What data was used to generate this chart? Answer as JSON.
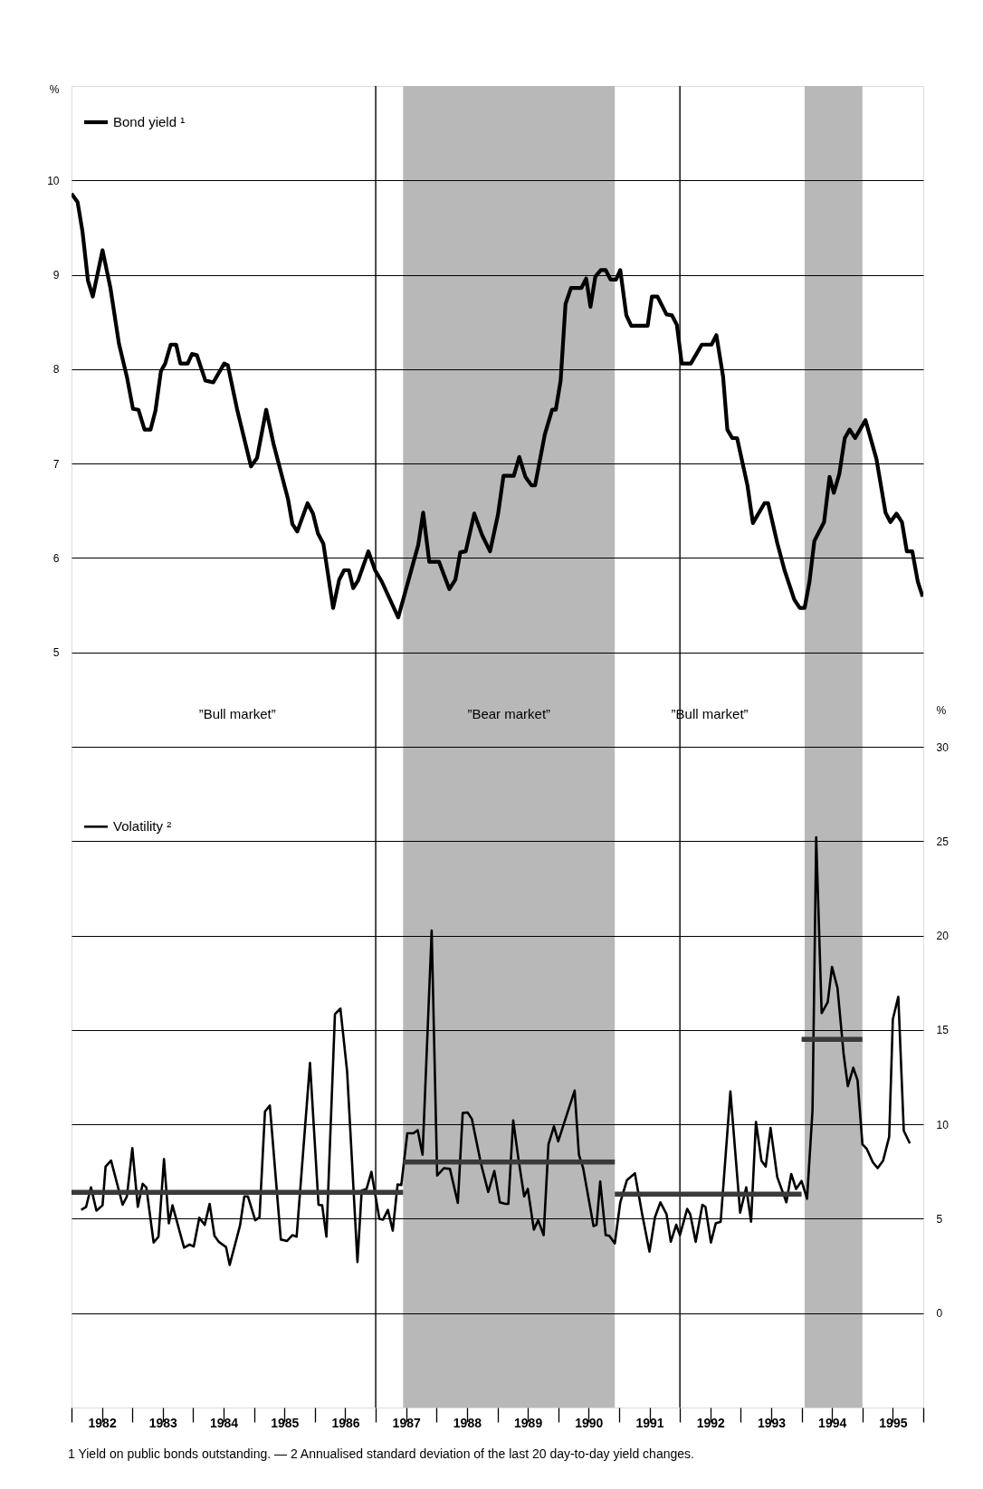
{
  "chart_data": {
    "type": "line",
    "xlim": [
      1982,
      1996
    ],
    "xticks": [
      {
        "value": 1982,
        "label": null
      },
      {
        "value": 1982.5,
        "label": "1982"
      },
      {
        "value": 1983,
        "label": null
      },
      {
        "value": 1983.5,
        "label": "1983"
      },
      {
        "value": 1984,
        "label": null
      },
      {
        "value": 1984.5,
        "label": "1984"
      },
      {
        "value": 1985,
        "label": null
      },
      {
        "value": 1985.5,
        "label": "1985"
      },
      {
        "value": 1986,
        "label": null
      },
      {
        "value": 1986.5,
        "label": "1986"
      },
      {
        "value": 1987,
        "label": null
      },
      {
        "value": 1987.5,
        "label": "1987"
      },
      {
        "value": 1988,
        "label": null
      },
      {
        "value": 1988.5,
        "label": "1988"
      },
      {
        "value": 1989,
        "label": null
      },
      {
        "value": 1989.5,
        "label": "1989"
      },
      {
        "value": 1990,
        "label": null
      },
      {
        "value": 1990.5,
        "label": "1990"
      },
      {
        "value": 1991,
        "label": null
      },
      {
        "value": 1991.5,
        "label": "1991"
      },
      {
        "value": 1992,
        "label": null
      },
      {
        "value": 1992.5,
        "label": "1992"
      },
      {
        "value": 1993,
        "label": null
      },
      {
        "value": 1993.5,
        "label": "1993"
      },
      {
        "value": 1994,
        "label": null
      },
      {
        "value": 1994.5,
        "label": "1994"
      },
      {
        "value": 1995,
        "label": null
      },
      {
        "value": 1995.5,
        "label": "1995"
      },
      {
        "value": 1996,
        "label": null
      }
    ],
    "ylabel": "%",
    "ylim": [
      -3,
      11
    ],
    "yticks": [
      {
        "value": -2,
        "label": null
      },
      {
        "value": -1,
        "label": null
      },
      {
        "value": 0,
        "label": null
      },
      {
        "value": 1,
        "label": null
      },
      {
        "value": 2,
        "label": null
      },
      {
        "value": 3,
        "label": null
      },
      {
        "value": 4,
        "label": null
      },
      5,
      6,
      7,
      8,
      9,
      10
    ],
    "y2label": "%",
    "y2lim": [
      -5,
      65
    ],
    "y2ticks": [
      0,
      5,
      10,
      15,
      20,
      25,
      30
    ],
    "grid": "y",
    "legend": "top left",
    "series": [
      {
        "name": "Bond yield ¹",
        "color": "#000000",
        "x": [
          1982.0,
          1982.1,
          1982.18,
          1982.27,
          1982.35,
          1982.51,
          1982.64,
          1982.78,
          1982.91,
          1983.01,
          1983.1,
          1983.2,
          1983.3,
          1983.38,
          1983.47,
          1983.54,
          1983.63,
          1983.72,
          1983.79,
          1983.91,
          1983.98,
          1984.06,
          1984.2,
          1984.33,
          1984.51,
          1984.57,
          1984.72,
          1984.95,
          1985.05,
          1985.2,
          1985.32,
          1985.56,
          1985.63,
          1985.71,
          1985.88,
          1985.97,
          1986.05,
          1986.14,
          1986.3,
          1986.4,
          1986.48,
          1986.56,
          1986.63,
          1986.71,
          1986.88,
          1986.99,
          1987.1,
          1987.37,
          1987.7,
          1987.78,
          1987.88,
          1988.04,
          1988.21,
          1988.31,
          1988.39,
          1988.48,
          1988.62,
          1988.75,
          1988.88,
          1989.01,
          1989.1,
          1989.27,
          1989.36,
          1989.46,
          1989.56,
          1989.62,
          1989.78,
          1989.9,
          1989.96,
          1990.04,
          1990.12,
          1990.21,
          1990.38,
          1990.46,
          1990.53,
          1990.61,
          1990.7,
          1990.78,
          1990.86,
          1990.95,
          1991.02,
          1991.12,
          1991.2,
          1991.47,
          1991.54,
          1991.63,
          1991.78,
          1991.87,
          1991.95,
          1992.03,
          1992.18,
          1992.36,
          1992.52,
          1992.6,
          1992.71,
          1992.78,
          1992.86,
          1992.94,
          1993.11,
          1993.2,
          1993.39,
          1993.45,
          1993.6,
          1993.72,
          1993.88,
          1993.97,
          1994.05,
          1994.13,
          1994.21,
          1994.37,
          1994.46,
          1994.53,
          1994.62,
          1994.71,
          1994.79,
          1994.88,
          1995.05,
          1995.23,
          1995.38,
          1995.46,
          1995.56,
          1995.65,
          1995.73,
          1995.82,
          1995.91,
          1995.99
        ],
        "values": [
          9.86,
          9.77,
          9.46,
          8.94,
          8.77,
          9.26,
          8.86,
          8.27,
          7.92,
          7.58,
          7.57,
          7.36,
          7.36,
          7.56,
          7.98,
          8.06,
          8.26,
          8.26,
          8.06,
          8.06,
          8.16,
          8.15,
          7.88,
          7.86,
          8.06,
          8.04,
          7.58,
          6.97,
          7.06,
          7.57,
          7.21,
          6.62,
          6.36,
          6.28,
          6.58,
          6.47,
          6.26,
          6.15,
          5.47,
          5.77,
          5.87,
          5.87,
          5.68,
          5.76,
          6.07,
          5.87,
          5.75,
          5.37,
          6.14,
          6.48,
          5.96,
          5.96,
          5.67,
          5.77,
          6.06,
          6.07,
          6.47,
          6.24,
          6.07,
          6.46,
          6.87,
          6.87,
          7.07,
          6.86,
          6.77,
          6.77,
          7.31,
          7.57,
          7.57,
          7.88,
          8.69,
          8.86,
          8.86,
          8.96,
          8.66,
          8.98,
          9.05,
          9.05,
          8.95,
          8.95,
          9.05,
          8.57,
          8.46,
          8.46,
          8.77,
          8.77,
          8.58,
          8.57,
          8.47,
          8.06,
          8.06,
          8.26,
          8.26,
          8.36,
          7.92,
          7.36,
          7.27,
          7.27,
          6.77,
          6.37,
          6.58,
          6.58,
          6.16,
          5.87,
          5.56,
          5.47,
          5.47,
          5.75,
          6.18,
          6.38,
          6.86,
          6.69,
          6.89,
          7.27,
          7.36,
          7.27,
          7.46,
          7.05,
          6.48,
          6.38,
          6.47,
          6.38,
          6.07,
          6.07,
          5.75,
          5.59
        ]
      },
      {
        "name": "Volatility ²",
        "axis": "y2",
        "color": "#000000",
        "x": [
          1982.16,
          1982.24,
          1982.32,
          1982.41,
          1982.51,
          1982.56,
          1982.65,
          1982.84,
          1982.91,
          1983.0,
          1983.09,
          1983.17,
          1983.23,
          1983.35,
          1983.43,
          1983.52,
          1983.6,
          1983.66,
          1983.85,
          1983.94,
          1984.01,
          1984.1,
          1984.19,
          1984.27,
          1984.35,
          1984.42,
          1984.54,
          1984.6,
          1984.77,
          1984.84,
          1984.9,
          1985.02,
          1985.09,
          1985.18,
          1985.26,
          1985.44,
          1985.54,
          1985.63,
          1985.7,
          1985.92,
          1986.06,
          1986.12,
          1986.19,
          1986.33,
          1986.42,
          1986.53,
          1986.7,
          1986.77,
          1986.85,
          1986.93,
          1987.06,
          1987.12,
          1987.2,
          1987.28,
          1987.36,
          1987.42,
          1987.52,
          1987.62,
          1987.69,
          1987.77,
          1987.92,
          1988.01,
          1988.12,
          1988.22,
          1988.35,
          1988.43,
          1988.51,
          1988.58,
          1988.73,
          1988.85,
          1988.95,
          1989.04,
          1989.13,
          1989.18,
          1989.26,
          1989.35,
          1989.44,
          1989.5,
          1989.6,
          1989.67,
          1989.76,
          1989.84,
          1989.93,
          1990.0,
          1990.15,
          1990.27,
          1990.34,
          1990.41,
          1990.58,
          1990.63,
          1990.69,
          1990.78,
          1990.84,
          1990.93,
          1991.02,
          1991.13,
          1991.26,
          1991.38,
          1991.5,
          1991.59,
          1991.68,
          1991.78,
          1991.85,
          1991.94,
          1992.0,
          1992.12,
          1992.17,
          1992.26,
          1992.37,
          1992.42,
          1992.51,
          1992.59,
          1992.67,
          1992.83,
          1992.99,
          1993.09,
          1993.17,
          1993.25,
          1993.34,
          1993.41,
          1993.49,
          1993.6,
          1993.75,
          1993.83,
          1993.91,
          1994.0,
          1994.09,
          1994.18,
          1994.24,
          1994.33,
          1994.43,
          1994.5,
          1994.59,
          1994.69,
          1994.76,
          1994.85,
          1994.92,
          1995.0,
          1995.07,
          1995.17,
          1995.25,
          1995.34,
          1995.44,
          1995.5,
          1995.59,
          1995.68,
          1995.78
        ],
        "values": [
          5.47,
          5.63,
          6.66,
          5.43,
          5.71,
          7.76,
          8.08,
          5.74,
          6.18,
          8.74,
          5.63,
          6.85,
          6.66,
          3.74,
          4.05,
          8.16,
          4.76,
          5.71,
          3.47,
          3.63,
          3.53,
          5.05,
          4.68,
          5.79,
          4.1,
          3.78,
          3.5,
          2.55,
          4.64,
          6.18,
          6.18,
          4.92,
          5.08,
          10.68,
          11.0,
          3.9,
          3.82,
          4.13,
          4.05,
          13.25,
          5.74,
          5.71,
          4.05,
          15.84,
          16.13,
          12.81,
          2.71,
          6.5,
          6.58,
          7.48,
          5.0,
          4.95,
          5.47,
          4.37,
          6.82,
          6.78,
          9.53,
          9.53,
          9.69,
          8.39,
          20.26,
          7.29,
          7.68,
          7.64,
          5.84,
          10.6,
          10.63,
          10.29,
          7.92,
          6.42,
          7.53,
          5.87,
          5.79,
          5.79,
          10.21,
          8.08,
          6.18,
          6.58,
          4.42,
          4.92,
          4.13,
          8.95,
          9.89,
          9.1,
          10.6,
          11.79,
          8.39,
          7.68,
          4.61,
          4.68,
          6.97,
          4.13,
          4.1,
          3.69,
          5.87,
          7.05,
          7.41,
          5.24,
          3.26,
          5.08,
          5.87,
          5.24,
          3.78,
          4.68,
          4.13,
          5.52,
          5.24,
          3.78,
          5.74,
          5.63,
          3.74,
          4.76,
          4.84,
          11.74,
          5.32,
          6.66,
          4.84,
          10.13,
          8.08,
          7.76,
          9.81,
          7.21,
          5.87,
          7.37,
          6.58,
          7.0,
          6.06,
          10.76,
          25.2,
          15.89,
          16.47,
          18.34,
          17.23,
          13.76,
          12.02,
          13.0,
          12.34,
          8.95,
          8.71,
          8.0,
          7.68,
          8.08,
          9.34,
          15.57,
          16.76,
          9.66,
          8.99
        ]
      },
      {
        "axis": "y2",
        "color": "#3a3a3a",
        "x": [
          1982.0,
          1987.45
        ],
        "values": [
          6.4,
          6.4
        ]
      },
      {
        "axis": "y2",
        "color": "#3a3a3a",
        "x": [
          1987.45,
          1990.93
        ],
        "values": [
          8.0,
          8.0
        ]
      },
      {
        "axis": "y2",
        "color": "#3a3a3a",
        "x": [
          1990.93,
          1994.0
        ],
        "values": [
          6.3,
          6.3
        ]
      },
      {
        "axis": "y2",
        "color": "#3a3a3a",
        "x": [
          1994.0,
          1995.0
        ],
        "values": [
          14.5,
          14.5
        ]
      }
    ],
    "ref_lines": [
      {
        "axis": "x",
        "value": 1987,
        "color": "#000000"
      },
      {
        "axis": "x",
        "value": 1992,
        "color": "#000000"
      }
    ],
    "bands": [
      {
        "axis": "x",
        "from": 1987.45,
        "to": 1990.93,
        "color": "#b8b8b8"
      },
      {
        "axis": "x",
        "from": 1994.05,
        "to": 1995.0,
        "color": "#b8b8b8"
      }
    ],
    "annotations": [
      "”Bull market”",
      "”Bear market”",
      "”Bull market”",
      "1 Yield on public bonds outstanding. — 2 Annualised standard deviation of the last 20 day-to-day yield changes."
    ]
  }
}
